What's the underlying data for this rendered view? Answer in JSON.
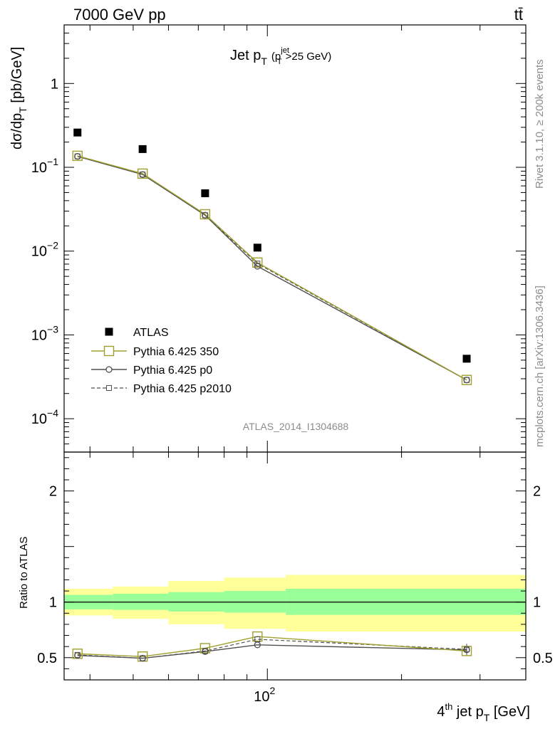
{
  "header": {
    "left": "7000 GeV pp",
    "right": "tt̄"
  },
  "side_text": {
    "rivet": "Rivet 3.1.10, ≥ 200k events",
    "mcplots": "mcplots.cern.ch [arXiv:1306.3436]"
  },
  "colors": {
    "data": "#000000",
    "py350": "#a0a030",
    "p0": "#505050",
    "p2010": "#505050",
    "band_outer": "#ffff99",
    "band_inner": "#99ff99"
  },
  "chart_data": [
    {
      "type": "line",
      "panel": "main",
      "title": "Jet p_T (p_T^jet>25 GeV)",
      "title_main": "Jet p",
      "title_sub": "T",
      "title_paren_open": "(p",
      "title_sup": "jet",
      "title_sub2": "T",
      "title_rest": ">25 GeV)",
      "ylabel": "dσ/dp_T [pb/GeV]",
      "ylabel_main": "dσ/dp",
      "ylabel_sub": "T",
      "ylabel_rest": " [pb/GeV]",
      "analysis_label": "ATLAS_2014_I1304688",
      "x_scale": "log",
      "y_scale": "log",
      "xlim": [
        35,
        380
      ],
      "ylim": [
        4e-05,
        5
      ],
      "y_ticks": [
        {
          "value": 1,
          "label": "1"
        },
        {
          "value": 0.1,
          "base": "10",
          "exp": "−1"
        },
        {
          "value": 0.01,
          "base": "10",
          "exp": "−2"
        },
        {
          "value": 0.001,
          "base": "10",
          "exp": "−3"
        },
        {
          "value": 0.0001,
          "base": "10",
          "exp": "−4"
        }
      ],
      "legend_position": "bottom-left",
      "series": [
        {
          "name": "ATLAS",
          "marker": "filled-square",
          "x": [
            37.5,
            52.5,
            72.5,
            95,
            280
          ],
          "y": [
            0.26,
            0.165,
            0.049,
            0.011,
            0.00052
          ]
        },
        {
          "name": "Pythia 6.425 350",
          "marker": "open-square",
          "line": "solid",
          "x": [
            37.5,
            52.5,
            72.5,
            95,
            280
          ],
          "y": [
            0.137,
            0.084,
            0.0275,
            0.0073,
            0.00029
          ]
        },
        {
          "name": "Pythia 6.425 p0",
          "marker": "open-circle",
          "line": "solid",
          "x": [
            37.5,
            52.5,
            72.5,
            95,
            280
          ],
          "y": [
            0.135,
            0.082,
            0.0268,
            0.0066,
            0.00029
          ]
        },
        {
          "name": "Pythia 6.425 p2010",
          "marker": "small-open-square",
          "line": "dashed",
          "x": [
            37.5,
            52.5,
            72.5,
            95,
            280
          ],
          "y": [
            0.135,
            0.082,
            0.0268,
            0.0071,
            0.00029
          ]
        }
      ]
    },
    {
      "type": "line",
      "panel": "ratio",
      "ylabel": "Ratio to ATLAS",
      "xlabel": "4^th jet p_T [GeV]",
      "xlabel_a": "4",
      "xlabel_sup": "th",
      "xlabel_b": " jet p",
      "xlabel_sub": "T",
      "xlabel_c": " [GeV]",
      "x_scale": "log",
      "xlim": [
        35,
        380
      ],
      "ylim": [
        0.3,
        2.35
      ],
      "y_ticks": [
        {
          "value": 0.5,
          "label": "0.5"
        },
        {
          "value": 1,
          "label": "1"
        },
        {
          "value": 2,
          "label": "2"
        }
      ],
      "x_ticks": [
        {
          "value": 100,
          "base": "10",
          "exp": "2"
        }
      ],
      "bands": [
        {
          "x_from": 35,
          "x_to": 45,
          "inner": [
            0.935,
            1.065
          ],
          "outer": [
            0.88,
            1.12
          ]
        },
        {
          "x_from": 45,
          "x_to": 60,
          "inner": [
            0.93,
            1.075
          ],
          "outer": [
            0.85,
            1.14
          ]
        },
        {
          "x_from": 60,
          "x_to": 80,
          "inner": [
            0.915,
            1.09
          ],
          "outer": [
            0.8,
            1.19
          ]
        },
        {
          "x_from": 80,
          "x_to": 110,
          "inner": [
            0.905,
            1.1
          ],
          "outer": [
            0.76,
            1.22
          ]
        },
        {
          "x_from": 110,
          "x_to": 380,
          "inner": [
            0.885,
            1.12
          ],
          "outer": [
            0.735,
            1.245
          ]
        }
      ],
      "series": [
        {
          "name": "Pythia 6.425 350",
          "x": [
            37.5,
            52.5,
            72.5,
            95,
            280
          ],
          "y": [
            0.535,
            0.51,
            0.585,
            0.69,
            0.56
          ]
        },
        {
          "name": "Pythia 6.425 p0",
          "x": [
            37.5,
            52.5,
            72.5,
            95,
            280
          ],
          "y": [
            0.52,
            0.495,
            0.555,
            0.615,
            0.57
          ]
        },
        {
          "name": "Pythia 6.425 p2010",
          "x": [
            37.5,
            52.5,
            72.5,
            95,
            280
          ],
          "y": [
            0.525,
            0.495,
            0.56,
            0.665,
            0.575
          ]
        }
      ]
    }
  ]
}
